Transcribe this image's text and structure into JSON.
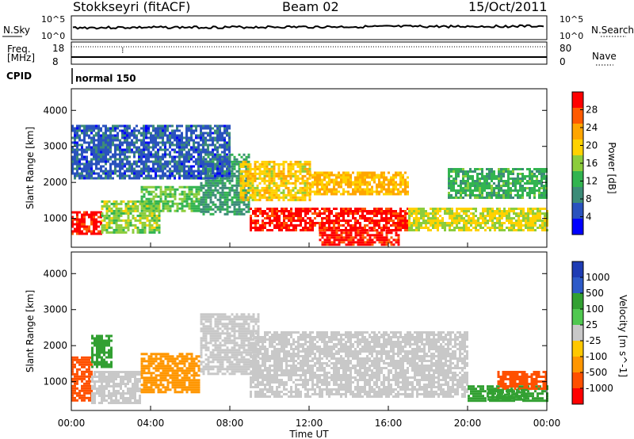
{
  "header": {
    "title": "Stokkseyri (fitACF)",
    "beam": "Beam 02",
    "date": "15/Oct/2011"
  },
  "noise_panel": {
    "left_label": "N.Sky",
    "right_label": "N.Search",
    "y_ticks": [
      "10^5",
      "10^0"
    ]
  },
  "freq_panel": {
    "left_label_line1": "Freq.",
    "left_label_line2": "[MHz]",
    "right_label": "Nave",
    "left_ticks": [
      "18",
      "8"
    ],
    "right_ticks": [
      "80",
      "0"
    ]
  },
  "cpid_panel": {
    "label": "CPID",
    "value": "normal 150"
  },
  "colors": {
    "power": [
      "#0000ff",
      "#2a52be",
      "#3c8c78",
      "#32b450",
      "#8ccd3c",
      "#ffd200",
      "#ffa500",
      "#ff5a00",
      "#ff0000"
    ],
    "velocity": [
      "#ff0000",
      "#ff5000",
      "#ff9600",
      "#ffc800",
      "#c8c8c8",
      "#50c850",
      "#32a032",
      "#2d5ac8",
      "#1e3cb4"
    ]
  },
  "chart_data": [
    {
      "type": "heatmap",
      "title": "",
      "xlabel": "",
      "ylabel": "Slant Range [km]",
      "x_ticks": [
        "00:00",
        "04:00",
        "08:00",
        "12:00",
        "16:00",
        "20:00",
        "00:00"
      ],
      "xlim": [
        0,
        24
      ],
      "y_ticks": [
        1000,
        2000,
        3000,
        4000
      ],
      "ylim": [
        200,
        4600
      ],
      "colorbar": {
        "label": "Power [dB]",
        "ticks": [
          4,
          8,
          12,
          16,
          20,
          24,
          28
        ],
        "range": [
          0,
          32
        ]
      },
      "regions": [
        {
          "x": [
            0.0,
            1.5
          ],
          "y": [
            550,
            1200
          ],
          "value": 30
        },
        {
          "x": [
            1.5,
            4.5
          ],
          "y": [
            600,
            1500
          ],
          "value": 16
        },
        {
          "x": [
            3.5,
            6.5
          ],
          "y": [
            1200,
            1900
          ],
          "value": 14
        },
        {
          "x": [
            6.5,
            9.0
          ],
          "y": [
            1100,
            2800
          ],
          "value": 10
        },
        {
          "x": [
            8.5,
            12.0
          ],
          "y": [
            1500,
            2600
          ],
          "value": 20
        },
        {
          "x": [
            9.0,
            17.0
          ],
          "y": [
            650,
            1300
          ],
          "value": 30
        },
        {
          "x": [
            12.5,
            16.5
          ],
          "y": [
            300,
            700
          ],
          "value": 30
        },
        {
          "x": [
            12.0,
            17.0
          ],
          "y": [
            1700,
            2300
          ],
          "value": 22
        },
        {
          "x": [
            17.0,
            24.0
          ],
          "y": [
            650,
            1300
          ],
          "value": 18
        },
        {
          "x": [
            19.0,
            24.0
          ],
          "y": [
            1600,
            2400
          ],
          "value": 12
        },
        {
          "x": [
            0.0,
            8.0
          ],
          "y": [
            2100,
            3600
          ],
          "value": 6
        }
      ]
    },
    {
      "type": "heatmap",
      "title": "",
      "xlabel": "Time UT",
      "ylabel": "Slant Range [km]",
      "x_ticks": [
        "00:00",
        "04:00",
        "08:00",
        "12:00",
        "16:00",
        "20:00",
        "00:00"
      ],
      "xlim": [
        0,
        24
      ],
      "y_ticks": [
        1000,
        2000,
        3000,
        4000
      ],
      "ylim": [
        200,
        4600
      ],
      "colorbar": {
        "label": "Velocity [m s^-1]",
        "ticks": [
          1000,
          500,
          100,
          25,
          -25,
          -100,
          -500,
          -1000
        ]
      },
      "regions": [
        {
          "x": [
            0.0,
            1.0
          ],
          "y": [
            500,
            1700
          ],
          "value": -700
        },
        {
          "x": [
            1.0,
            3.5
          ],
          "y": [
            400,
            1300
          ],
          "value": 20
        },
        {
          "x": [
            1.0,
            2.0
          ],
          "y": [
            1400,
            2300
          ],
          "value": 150
        },
        {
          "x": [
            3.5,
            6.5
          ],
          "y": [
            700,
            1800
          ],
          "value": -300
        },
        {
          "x": [
            6.5,
            9.5
          ],
          "y": [
            1200,
            2900
          ],
          "value": 0
        },
        {
          "x": [
            9.0,
            20.0
          ],
          "y": [
            600,
            2400
          ],
          "value": 0
        },
        {
          "x": [
            20.0,
            24.0
          ],
          "y": [
            500,
            900
          ],
          "value": 150
        },
        {
          "x": [
            21.5,
            24.0
          ],
          "y": [
            800,
            1300
          ],
          "value": -600
        },
        {
          "x": [
            21.0,
            23.0
          ],
          "y": [
            500,
            800
          ],
          "value": 200
        }
      ]
    }
  ]
}
